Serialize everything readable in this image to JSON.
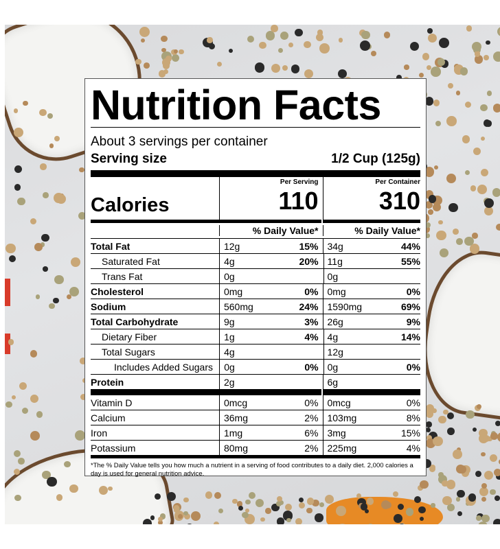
{
  "title": "Nutrition Facts",
  "servings_per_container": "About 3 servings per container",
  "serving_size_label": "Serving size",
  "serving_size_value": "1/2 Cup (125g)",
  "per_serving_label": "Per Serving",
  "per_container_label": "Per Container",
  "calories_label": "Calories",
  "calories_per_serving": "110",
  "calories_per_container": "310",
  "daily_value_header": "% Daily Value*",
  "nutrients": [
    {
      "name": "Total Fat",
      "ps_amount": "12g",
      "ps_dv": "15%",
      "pc_amount": "34g",
      "pc_dv": "44%"
    },
    {
      "name": "Saturated Fat",
      "ps_amount": "4g",
      "ps_dv": "20%",
      "pc_amount": "11g",
      "pc_dv": "55%"
    },
    {
      "name": "Trans Fat",
      "ps_amount": "0g",
      "ps_dv": "",
      "pc_amount": "0g",
      "pc_dv": ""
    },
    {
      "name": "Cholesterol",
      "ps_amount": "0mg",
      "ps_dv": "0%",
      "pc_amount": "0mg",
      "pc_dv": "0%"
    },
    {
      "name": "Sodium",
      "ps_amount": "560mg",
      "ps_dv": "24%",
      "pc_amount": "1590mg",
      "pc_dv": "69%"
    },
    {
      "name": "Total Carbohydrate",
      "ps_amount": "9g",
      "ps_dv": "3%",
      "pc_amount": "26g",
      "pc_dv": "9%"
    },
    {
      "name": "Dietary Fiber",
      "ps_amount": "1g",
      "ps_dv": "4%",
      "pc_amount": "4g",
      "pc_dv": "14%"
    },
    {
      "name": "Total Sugars",
      "ps_amount": "4g",
      "ps_dv": "",
      "pc_amount": "12g",
      "pc_dv": ""
    },
    {
      "name": "Includes Added Sugars",
      "ps_amount": "0g",
      "ps_dv": "0%",
      "pc_amount": "0g",
      "pc_dv": "0%"
    },
    {
      "name": "Protein",
      "ps_amount": "2g",
      "ps_dv": "",
      "pc_amount": "6g",
      "pc_dv": ""
    }
  ],
  "minerals": [
    {
      "name": "Vitamin D",
      "ps_amount": "0mcg",
      "ps_dv": "0%",
      "pc_amount": "0mcg",
      "pc_dv": "0%"
    },
    {
      "name": "Calcium",
      "ps_amount": "36mg",
      "ps_dv": "2%",
      "pc_amount": "103mg",
      "pc_dv": "8%"
    },
    {
      "name": "Iron",
      "ps_amount": "1mg",
      "ps_dv": "6%",
      "pc_amount": "3mg",
      "pc_dv": "15%"
    },
    {
      "name": "Potassium",
      "ps_amount": "80mg",
      "ps_dv": "2%",
      "pc_amount": "225mg",
      "pc_dv": "4%"
    }
  ],
  "footnote": "*The % Daily Value tells you how much a nutrient in a serving of food contributes to a daily diet. 2,000 calories a day is used for general nutrition advice."
}
